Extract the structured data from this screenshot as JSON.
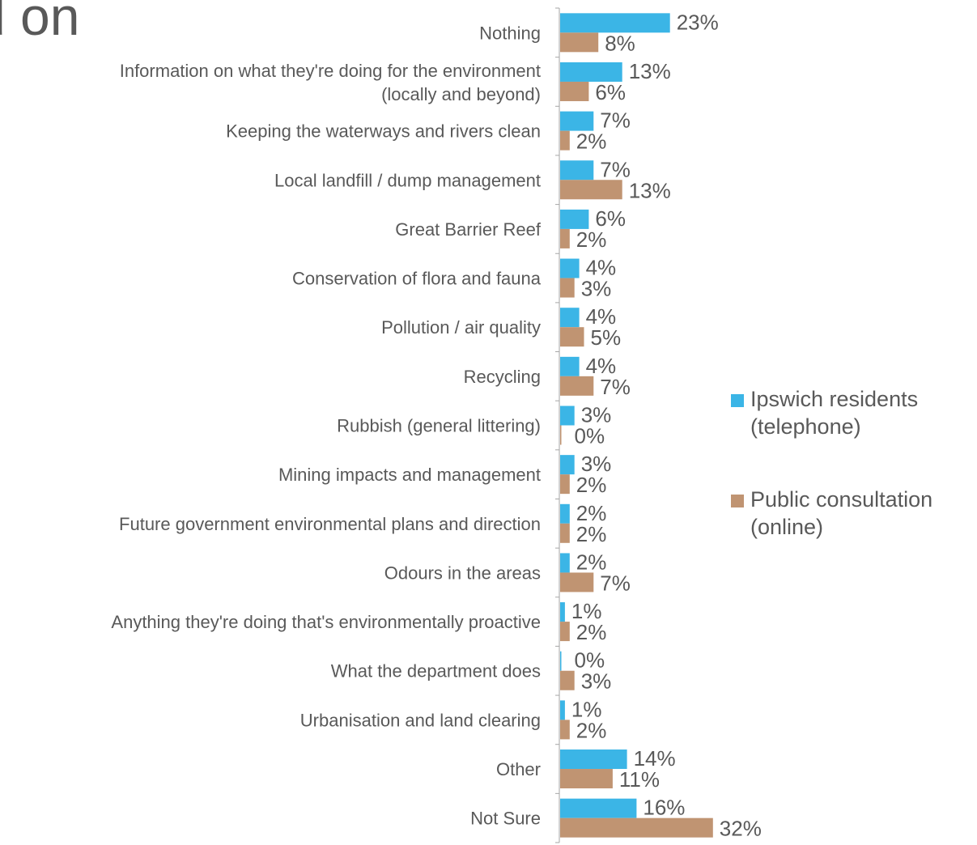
{
  "title_fragment": "d on",
  "chart_data": {
    "type": "bar",
    "orientation": "horizontal",
    "categories": [
      [
        "Nothing"
      ],
      [
        "Information on what they're doing for the environment",
        "(locally and beyond)"
      ],
      [
        "Keeping the waterways and rivers clean"
      ],
      [
        "Local landfill / dump management"
      ],
      [
        "Great Barrier Reef"
      ],
      [
        "Conservation of flora and fauna"
      ],
      [
        "Pollution / air quality "
      ],
      [
        "Recycling"
      ],
      [
        "Rubbish (general littering)"
      ],
      [
        "Mining impacts and management"
      ],
      [
        "Future government environmental plans and direction"
      ],
      [
        "Odours in the areas "
      ],
      [
        "Anything they're doing that's environmentally proactive "
      ],
      [
        "What the department does"
      ],
      [
        "Urbanisation and land clearing"
      ],
      [
        "Other"
      ],
      [
        "Not Sure"
      ]
    ],
    "series": [
      {
        "name": "Ipswich residents (telephone)",
        "color": "#3bb5e6",
        "values": [
          23,
          13,
          7,
          7,
          6,
          4,
          4,
          4,
          3,
          3,
          2,
          2,
          1,
          0,
          1,
          14,
          16
        ],
        "labels": [
          "23%",
          "13%",
          "7%",
          "7%",
          "6%",
          "4%",
          "4%",
          "4%",
          "3%",
          "3%",
          "2%",
          "2%",
          "1%",
          "0%",
          "1%",
          "14%",
          "16%"
        ]
      },
      {
        "name": "Public consultation (online)",
        "color": "#c09472",
        "values": [
          8,
          6,
          2,
          13,
          2,
          3,
          5,
          7,
          0,
          2,
          2,
          7,
          2,
          3,
          2,
          11,
          32
        ],
        "labels": [
          "8%",
          "6%",
          "2%",
          "13%",
          "2%",
          "3%",
          "5%",
          "7%",
          "0%",
          "2%",
          "2%",
          "7%",
          "2%",
          "3%",
          "2%",
          "11%",
          "32%"
        ]
      }
    ],
    "xlim": [
      0,
      40
    ],
    "grid": false,
    "legend_position": "right"
  },
  "legend": {
    "items": [
      {
        "line1": "Ipswich residents",
        "line2": "(telephone)",
        "color": "#3bb5e6"
      },
      {
        "line1": "Public consultation",
        "line2": "(online)",
        "color": "#c09472"
      }
    ]
  }
}
